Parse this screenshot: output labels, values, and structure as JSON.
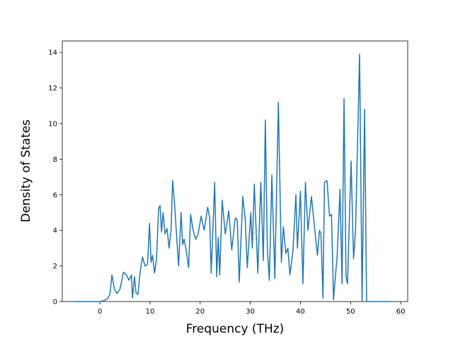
{
  "chart_data": {
    "type": "line",
    "x_label": "Frequency (THz)",
    "y_label": "Density of States",
    "color": "#1f77b4",
    "xlim": [
      -7.5,
      61.4
    ],
    "ylim": [
      0,
      14.64
    ],
    "xticks": [
      0,
      10,
      20,
      30,
      40,
      50,
      60
    ],
    "yticks": [
      0,
      2,
      4,
      6,
      8,
      10,
      12,
      14
    ],
    "x": [
      -5.3,
      -3,
      -1,
      0,
      0.8,
      1.5,
      2.0,
      2.4,
      2.9,
      3.4,
      4.0,
      4.7,
      5.3,
      5.8,
      6.3,
      6.5,
      6.9,
      7.2,
      7.6,
      8.0,
      8.5,
      9.0,
      9.5,
      9.9,
      10.2,
      10.5,
      10.9,
      11.3,
      11.7,
      12.0,
      12.3,
      12.6,
      13.0,
      13.4,
      13.8,
      14.2,
      14.5,
      14.9,
      15.3,
      15.7,
      16.2,
      16.5,
      16.8,
      17.2,
      17.7,
      18.1,
      18.6,
      19.1,
      19.6,
      20.2,
      20.8,
      21.5,
      21.9,
      22.2,
      22.9,
      23.3,
      23.6,
      23.9,
      24.4,
      25.0,
      25.3,
      25.7,
      26.3,
      27.0,
      27.4,
      27.8,
      28.5,
      29.0,
      29.4,
      30.1,
      30.4,
      30.8,
      31.5,
      32.1,
      32.6,
      33.0,
      33.4,
      33.8,
      34.3,
      34.9,
      35.6,
      36.2,
      36.6,
      37.1,
      37.5,
      37.9,
      38.5,
      39.1,
      39.4,
      40.0,
      40.5,
      41.0,
      41.5,
      42.2,
      42.8,
      43.4,
      43.8,
      44.1,
      44.5,
      44.8,
      45.3,
      45.8,
      46.2,
      46.6,
      47.0,
      47.3,
      47.9,
      48.3,
      48.7,
      49.1,
      49.4,
      50.1,
      50.6,
      51.0,
      51.8,
      52.3,
      52.8,
      53.2,
      55,
      58
    ],
    "values": [
      0,
      0,
      0,
      0,
      0.05,
      0.15,
      0.4,
      1.5,
      0.7,
      0.45,
      0.7,
      1.65,
      1.5,
      1.2,
      1.5,
      0.2,
      1.4,
      0.5,
      0.4,
      1.6,
      2.5,
      2.0,
      2.1,
      4.4,
      2.2,
      2.6,
      1.6,
      2.4,
      5.2,
      5.4,
      3.9,
      5.0,
      3.8,
      4.1,
      3.0,
      4.0,
      6.8,
      5.5,
      3.7,
      2.0,
      5.0,
      3.2,
      3.5,
      2.9,
      1.9,
      4.9,
      4.0,
      3.5,
      3.8,
      4.8,
      4.0,
      5.3,
      4.7,
      1.6,
      6.7,
      1.4,
      3.6,
      1.5,
      5.7,
      3.8,
      4.3,
      5.1,
      2.9,
      4.7,
      4.6,
      1.1,
      5.9,
      4.6,
      1.9,
      5.0,
      3.0,
      6.6,
      1.6,
      6.7,
      2.3,
      10.2,
      3.0,
      1.2,
      7.1,
      1.3,
      11.2,
      2.2,
      4.2,
      2.7,
      3.0,
      1.5,
      2.8,
      6.0,
      3.0,
      6.2,
      1.0,
      6.7,
      4.0,
      5.9,
      4.2,
      2.6,
      4.0,
      3.8,
      0.2,
      6.7,
      6.8,
      4.8,
      4.9,
      0.1,
      1.5,
      2.4,
      6.3,
      1.0,
      11.4,
      1.4,
      1.0,
      7.9,
      2.4,
      4.0,
      13.9,
      0,
      10.8,
      0,
      0,
      0
    ]
  }
}
